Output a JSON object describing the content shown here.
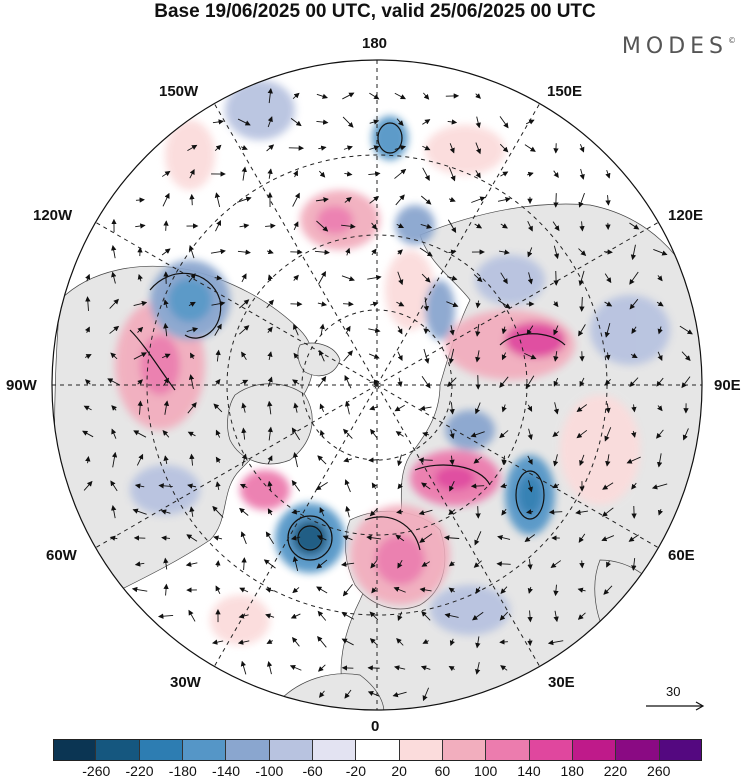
{
  "title": "Base 19/06/2025 00 UTC, valid 25/06/2025 00 UTC",
  "logo": "MODES",
  "logo_mark": "©",
  "longitude_labels": {
    "lon_180": "180",
    "lon_150e": "150E",
    "lon_120e": "120E",
    "lon_90e": "90E",
    "lon_60e": "60E",
    "lon_30e": "30E",
    "lon_0": "0",
    "lon_30w": "30W",
    "lon_60w": "60W",
    "lon_90w": "90W",
    "lon_120w": "120W",
    "lon_150w": "150W"
  },
  "reference_vector": {
    "label": "30",
    "icon": "arrow-right-icon"
  },
  "colorbar": {
    "ticks": [
      "-260",
      "-220",
      "-180",
      "-140",
      "-100",
      "-60",
      "-20",
      "20",
      "60",
      "100",
      "140",
      "180",
      "220",
      "260"
    ],
    "colors": [
      "#0b3553",
      "#15577f",
      "#2d7db2",
      "#5596c7",
      "#8aa6cf",
      "#b8c3e0",
      "#e3e3f2",
      "#ffffff",
      "#fbdcdc",
      "#f2aebe",
      "#ec7cae",
      "#e0479e",
      "#bf1a8a",
      "#8a0a83",
      "#540880"
    ]
  },
  "map": {
    "projection": "north-polar-stereographic",
    "background_colors": {
      "land": "#e9e9e9",
      "ocean": "#ffffff"
    }
  }
}
